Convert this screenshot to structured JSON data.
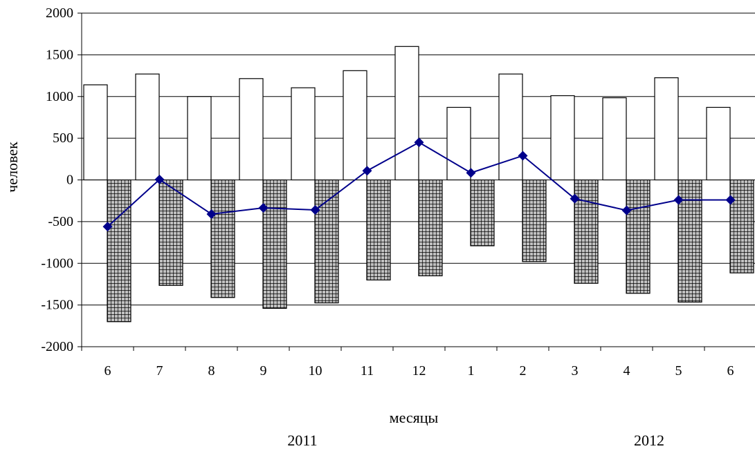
{
  "chart_data": {
    "type": "bar",
    "categories": [
      "6",
      "7",
      "8",
      "9",
      "10",
      "11",
      "12",
      "1",
      "2",
      "3",
      "4",
      "5",
      "6"
    ],
    "year_labels": [
      "2011",
      "2012"
    ],
    "series": [
      {
        "kind": "bar",
        "style": "white",
        "values": [
          1140,
          1270,
          1000,
          1215,
          1105,
          1310,
          1600,
          870,
          1270,
          1010,
          985,
          1225,
          870
        ]
      },
      {
        "kind": "bar",
        "style": "hatched",
        "values": [
          -1700,
          -1265,
          -1410,
          -1540,
          -1475,
          -1200,
          -1150,
          -790,
          -980,
          -1240,
          -1360,
          -1465,
          -1115
        ]
      },
      {
        "kind": "line",
        "style": "diamond",
        "values": [
          -560,
          5,
          -410,
          -335,
          -360,
          110,
          450,
          85,
          290,
          -225,
          -365,
          -240,
          -240
        ]
      }
    ],
    "xlabel": "месяцы",
    "ylabel": "человек",
    "ylim": [
      -2000,
      2000
    ],
    "yticks": [
      -2000,
      -1500,
      -1000,
      -500,
      0,
      500,
      1000,
      1500,
      2000
    ],
    "grid": true,
    "colors": {
      "line": "#00008B",
      "hatch_fill": "#C0C0C0",
      "bar_stroke": "#000000"
    }
  }
}
